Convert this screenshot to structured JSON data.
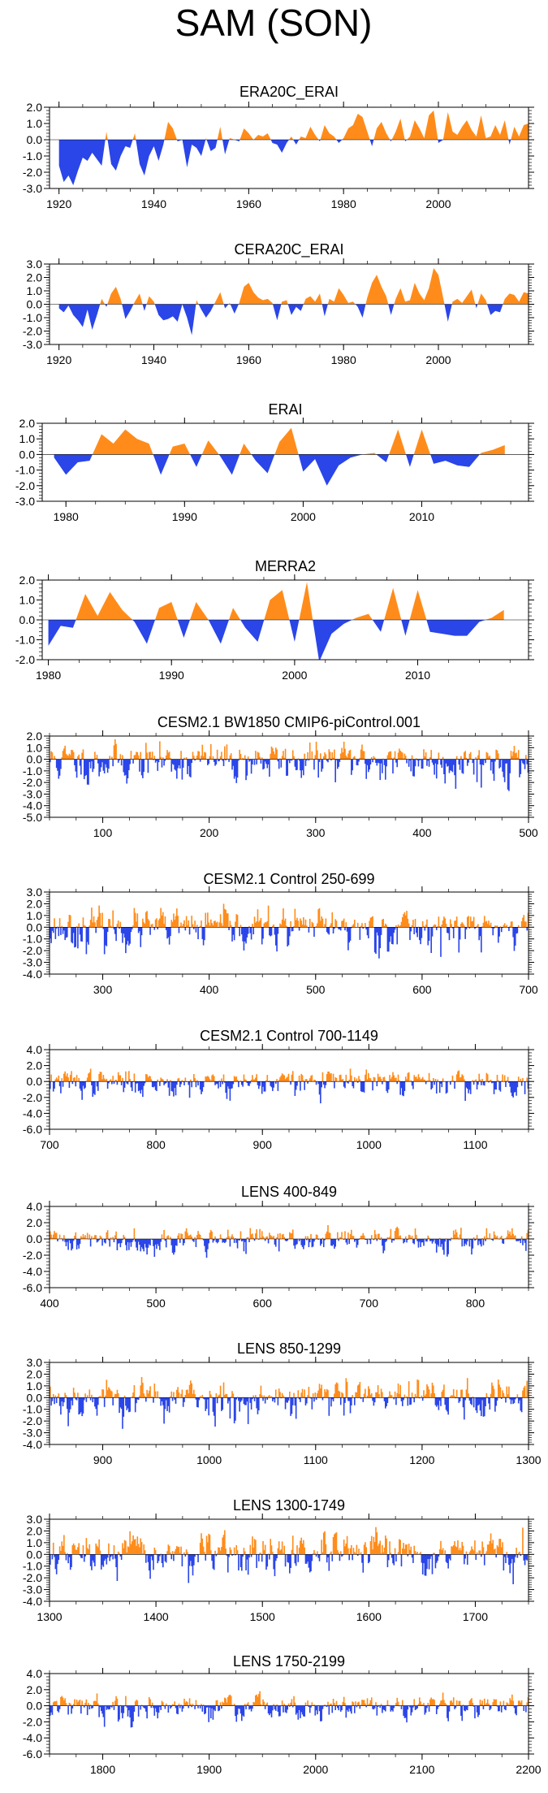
{
  "title": "SAM (SON)",
  "colors": {
    "positive": "#ff8c1a",
    "negative": "#2a45e8",
    "axis": "#000000"
  },
  "chart_data": [
    {
      "type": "area",
      "title": "ERA20C_ERAI",
      "xlim": [
        1918,
        2019
      ],
      "ylim": [
        -3,
        2
      ],
      "yticks": [
        -3,
        -2,
        -1,
        0,
        1,
        2
      ],
      "ytick_labels": [
        "-3.0",
        "-2.0",
        "-1.0",
        "0.0",
        "1.0",
        "2.0"
      ],
      "xticks": [
        1920,
        1940,
        1960,
        1980,
        2000
      ],
      "xtick_labels": [
        "1920",
        "1940",
        "1960",
        "1980",
        "2000"
      ],
      "x_start": 1920,
      "values": [
        -1.6,
        -2.6,
        -2.2,
        -2.8,
        -1.9,
        -1.1,
        -1.3,
        -0.8,
        -1.2,
        -1.6,
        0.5,
        -1.5,
        -1.9,
        -1.0,
        -0.4,
        -0.5,
        0.4,
        -1.5,
        -2.2,
        -1.0,
        -0.4,
        -1.3,
        -0.3,
        1.1,
        0.7,
        -0.1,
        0.0,
        -1.7,
        -0.3,
        -0.5,
        -1.0,
        0.1,
        -0.7,
        -0.5,
        0.8,
        -0.9,
        0.1,
        0.0,
        -0.1,
        0.7,
        0.4,
        0.0,
        0.3,
        0.2,
        0.4,
        -0.2,
        -0.3,
        -0.8,
        -0.2,
        0.2,
        -0.3,
        0.2,
        0.1,
        0.8,
        0.3,
        -0.1,
        0.9,
        0.4,
        0.2,
        -0.2,
        0.1,
        0.7,
        0.9,
        1.6,
        1.4,
        0.5,
        -0.4,
        0.7,
        1.1,
        0.4,
        -0.1,
        0.5,
        1.3,
        -0.1,
        0.2,
        1.2,
        0.7,
        0.1,
        1.5,
        1.8,
        -0.2,
        0.0,
        1.7,
        0.5,
        0.3,
        0.8,
        1.2,
        0.6,
        0.2,
        1.5,
        0.1,
        0.2,
        0.9,
        0.3,
        1.2,
        -0.3,
        0.8,
        0.2,
        0.9,
        1.0
      ]
    },
    {
      "type": "area",
      "title": "CERA20C_ERAI",
      "xlim": [
        1918,
        2019
      ],
      "ylim": [
        -3,
        3
      ],
      "yticks": [
        -3,
        -2,
        -1,
        0,
        1,
        2,
        3
      ],
      "ytick_labels": [
        "-3.0",
        "-2.0",
        "-1.0",
        "0.0",
        "1.0",
        "2.0",
        "3.0"
      ],
      "xticks": [
        1920,
        1940,
        1960,
        1980,
        2000
      ],
      "xtick_labels": [
        "1920",
        "1940",
        "1960",
        "1980",
        "2000"
      ],
      "x_start": 1920,
      "values": [
        -0.3,
        -0.6,
        -0.1,
        -0.8,
        -1.2,
        -1.7,
        -0.4,
        -1.9,
        -0.8,
        0.4,
        -0.2,
        0.8,
        1.3,
        0.4,
        -1.1,
        -0.5,
        0.2,
        0.8,
        -0.5,
        0.6,
        0.2,
        -0.8,
        -1.2,
        -1.1,
        -0.9,
        -1.3,
        0.0,
        -1.0,
        -2.3,
        0.3,
        -0.4,
        -1.0,
        -0.5,
        0.2,
        0.9,
        -0.3,
        0.1,
        -0.7,
        0.1,
        1.3,
        1.6,
        0.9,
        0.5,
        0.3,
        0.4,
        0.1,
        -1.2,
        0.2,
        0.3,
        -0.8,
        -0.2,
        -0.5,
        0.4,
        0.6,
        0.2,
        0.8,
        -0.9,
        0.4,
        0.2,
        1.2,
        0.7,
        0.1,
        0.2,
        -0.2,
        -1.0,
        0.5,
        1.6,
        2.2,
        1.3,
        0.6,
        -0.8,
        0.4,
        1.2,
        0.2,
        0.3,
        1.6,
        0.8,
        0.3,
        1.2,
        2.7,
        2.2,
        0.5,
        -1.3,
        0.2,
        0.4,
        0.1,
        0.6,
        1.1,
        -0.3,
        0.8,
        0.3,
        -0.8,
        -0.5,
        -0.6,
        0.4,
        0.8,
        0.7,
        0.2,
        0.9,
        0.8
      ]
    },
    {
      "type": "area",
      "title": "ERAI",
      "xlim": [
        1978,
        2019
      ],
      "ylim": [
        -3,
        2
      ],
      "yticks": [
        -3,
        -2,
        -1,
        0,
        1,
        2
      ],
      "ytick_labels": [
        "-3.0",
        "-2.0",
        "-1.0",
        "0.0",
        "1.0",
        "2.0"
      ],
      "xticks": [
        1980,
        1990,
        2000,
        2010
      ],
      "xtick_labels": [
        "1980",
        "1990",
        "2000",
        "2010"
      ],
      "x_start": 1979,
      "values": [
        -0.2,
        -1.3,
        -0.5,
        -0.4,
        1.3,
        0.7,
        1.6,
        1.0,
        0.7,
        -1.3,
        0.5,
        0.7,
        -0.8,
        0.9,
        -0.1,
        -1.3,
        0.7,
        -0.4,
        -1.2,
        0.8,
        1.7,
        -1.1,
        -0.3,
        -2.0,
        -0.7,
        -0.2,
        0.0,
        0.1,
        -0.5,
        1.6,
        -0.8,
        1.6,
        -0.6,
        -0.4,
        -0.7,
        -0.8,
        0.1,
        0.3,
        0.6
      ]
    },
    {
      "type": "area",
      "title": "MERRA2",
      "xlim": [
        1979.5,
        2019
      ],
      "ylim": [
        -2,
        2
      ],
      "yticks": [
        -2,
        -1,
        0,
        1,
        2
      ],
      "ytick_labels": [
        "-2.0",
        "-1.0",
        "0.0",
        "1.0",
        "2.0"
      ],
      "xticks": [
        1980,
        1990,
        2000,
        2010
      ],
      "xtick_labels": [
        "1980",
        "1990",
        "2000",
        "2010"
      ],
      "x_start": 1980,
      "values": [
        -1.3,
        -0.3,
        -0.4,
        1.3,
        0.2,
        1.4,
        0.5,
        -0.1,
        -1.2,
        0.6,
        0.9,
        -0.9,
        0.9,
        0.0,
        -1.2,
        0.6,
        -0.4,
        -1.1,
        1.0,
        1.5,
        -1.1,
        1.9,
        -2.1,
        -0.7,
        -0.2,
        0.1,
        0.3,
        -0.6,
        1.6,
        -0.8,
        1.5,
        -0.6,
        -0.7,
        -0.8,
        -0.8,
        -0.1,
        0.1,
        0.5
      ]
    },
    {
      "type": "bar",
      "title": "CESM2.1 BW1850 CMIP6-piControl.001",
      "xlim": [
        50,
        500
      ],
      "ylim": [
        -5,
        2
      ],
      "yticks": [
        -5,
        -4,
        -3,
        -2,
        -1,
        0,
        1,
        2
      ],
      "ytick_labels": [
        "-5.0",
        "-4.0",
        "-3.0",
        "-2.0",
        "-1.0",
        "0.0",
        "1.0",
        "2.0"
      ],
      "xticks": [
        100,
        200,
        300,
        400,
        500
      ],
      "xtick_labels": [
        "100",
        "200",
        "300",
        "400",
        "500"
      ],
      "series_note": "451 synthetic-pattern annual values",
      "seed": 11,
      "pos_scale": 0.85,
      "neg_scale": 1.3,
      "count": 451,
      "x_start": 50
    },
    {
      "type": "bar",
      "title": "CESM2.1 Control 250-699",
      "xlim": [
        250,
        700
      ],
      "ylim": [
        -4,
        3
      ],
      "yticks": [
        -4,
        -3,
        -2,
        -1,
        0,
        1,
        2,
        3
      ],
      "ytick_labels": [
        "-4.0",
        "-3.0",
        "-2.0",
        "-1.0",
        "0.0",
        "1.0",
        "2.0",
        "3.0"
      ],
      "xticks": [
        300,
        400,
        500,
        600,
        700
      ],
      "xtick_labels": [
        "300",
        "400",
        "500",
        "600",
        "700"
      ],
      "seed": 23,
      "pos_scale": 0.9,
      "neg_scale": 1.25,
      "count": 450,
      "x_start": 250
    },
    {
      "type": "bar",
      "title": "CESM2.1 Control 700-1149",
      "xlim": [
        700,
        1150
      ],
      "ylim": [
        -6,
        4
      ],
      "yticks": [
        -6,
        -4,
        -2,
        0,
        2,
        4
      ],
      "ytick_labels": [
        "-6.0",
        "-4.0",
        "-2.0",
        "0.0",
        "2.0",
        "4.0"
      ],
      "xticks": [
        700,
        800,
        900,
        1000,
        1100
      ],
      "xtick_labels": [
        "700",
        "800",
        "900",
        "1000",
        "1100"
      ],
      "seed": 37,
      "pos_scale": 0.9,
      "neg_scale": 1.2,
      "count": 450,
      "x_start": 700
    },
    {
      "type": "bar",
      "title": "LENS 400-849",
      "xlim": [
        400,
        850
      ],
      "ylim": [
        -6,
        4
      ],
      "yticks": [
        -6,
        -4,
        -2,
        0,
        2,
        4
      ],
      "ytick_labels": [
        "-6.0",
        "-4.0",
        "-2.0",
        "0.0",
        "2.0",
        "4.0"
      ],
      "xticks": [
        400,
        500,
        600,
        700,
        800
      ],
      "xtick_labels": [
        "400",
        "500",
        "600",
        "700",
        "800"
      ],
      "seed": 41,
      "pos_scale": 0.8,
      "neg_scale": 1.1,
      "count": 450,
      "x_start": 400
    },
    {
      "type": "bar",
      "title": "LENS 850-1299",
      "xlim": [
        850,
        1300
      ],
      "ylim": [
        -4,
        3
      ],
      "yticks": [
        -4,
        -3,
        -2,
        -1,
        0,
        1,
        2,
        3
      ],
      "ytick_labels": [
        "-4.0",
        "-3.0",
        "-2.0",
        "-1.0",
        "0.0",
        "1.0",
        "2.0",
        "3.0"
      ],
      "xticks": [
        900,
        1000,
        1100,
        1200,
        1300
      ],
      "xtick_labels": [
        "900",
        "1000",
        "1100",
        "1200",
        "1300"
      ],
      "seed": 53,
      "pos_scale": 0.95,
      "neg_scale": 1.2,
      "count": 450,
      "x_start": 850
    },
    {
      "type": "bar",
      "title": "LENS 1300-1749",
      "xlim": [
        1300,
        1750
      ],
      "ylim": [
        -4,
        3
      ],
      "yticks": [
        -4,
        -3,
        -2,
        -1,
        0,
        1,
        2,
        3
      ],
      "ytick_labels": [
        "-4.0",
        "-3.0",
        "-2.0",
        "-1.0",
        "0.0",
        "1.0",
        "2.0",
        "3.0"
      ],
      "xticks": [
        1300,
        1400,
        1500,
        1600,
        1700
      ],
      "xtick_labels": [
        "1300",
        "1400",
        "1500",
        "1600",
        "1700"
      ],
      "seed": 67,
      "pos_scale": 0.95,
      "neg_scale": 1.25,
      "count": 450,
      "x_start": 1300
    },
    {
      "type": "bar",
      "title": "LENS 1750-2199",
      "xlim": [
        1750,
        2200
      ],
      "ylim": [
        -6,
        4
      ],
      "yticks": [
        -6,
        -4,
        -2,
        0,
        2,
        4
      ],
      "ytick_labels": [
        "-6.0",
        "-4.0",
        "-2.0",
        "0.0",
        "2.0",
        "4.0"
      ],
      "xticks": [
        1800,
        1900,
        2000,
        2100,
        2200
      ],
      "xtick_labels": [
        "1800",
        "1900",
        "2000",
        "2100",
        "2200"
      ],
      "seed": 79,
      "pos_scale": 0.85,
      "neg_scale": 1.15,
      "count": 450,
      "x_start": 1750
    }
  ]
}
